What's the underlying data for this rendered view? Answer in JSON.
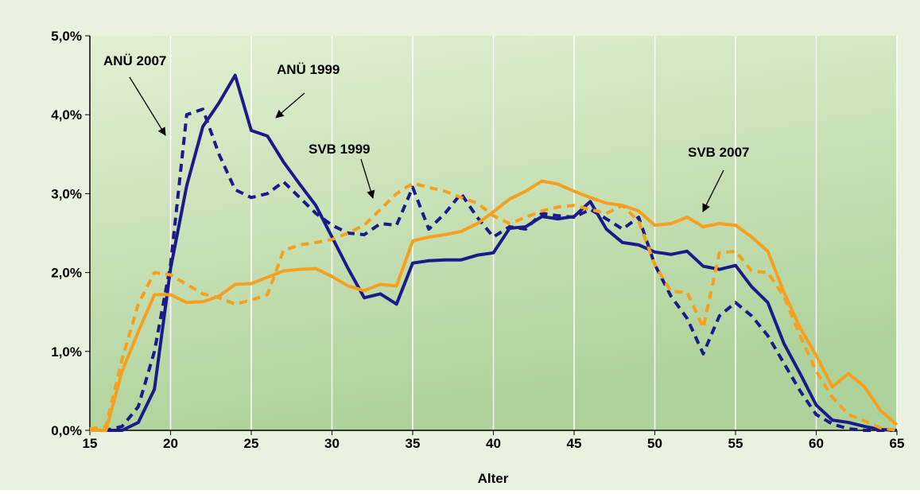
{
  "chart_data": {
    "type": "line",
    "xlabel": "Alter",
    "x": [
      15,
      16,
      17,
      18,
      19,
      20,
      21,
      22,
      23,
      24,
      25,
      26,
      27,
      28,
      29,
      30,
      31,
      32,
      33,
      34,
      35,
      36,
      37,
      38,
      39,
      40,
      41,
      42,
      43,
      44,
      45,
      46,
      47,
      48,
      49,
      50,
      51,
      52,
      53,
      54,
      55,
      56,
      57,
      58,
      59,
      60,
      61,
      62,
      63,
      64,
      65
    ],
    "series": [
      {
        "name": "ANÜ 2007",
        "color": "#1a1a8a",
        "dashed": false,
        "values": [
          0,
          0,
          0,
          0.1,
          0.52,
          2.05,
          3.1,
          3.85,
          4.15,
          4.5,
          3.8,
          3.73,
          3.4,
          3.12,
          2.85,
          2.45,
          2.05,
          1.68,
          1.73,
          1.6,
          2.12,
          2.15,
          2.16,
          2.16,
          2.22,
          2.25,
          2.56,
          2.58,
          2.71,
          2.68,
          2.71,
          2.9,
          2.55,
          2.38,
          2.35,
          2.26,
          2.23,
          2.27,
          2.08,
          2.04,
          2.09,
          1.82,
          1.62,
          1.1,
          0.72,
          0.32,
          0.13,
          0.1,
          0.05,
          0.01,
          0
        ]
      },
      {
        "name": "ANÜ 1999",
        "color": "#1a1a8a",
        "dashed": true,
        "values": [
          0,
          0,
          0.05,
          0.3,
          1.0,
          2.1,
          4.0,
          4.07,
          3.5,
          3.05,
          2.95,
          3.0,
          3.15,
          2.95,
          2.75,
          2.6,
          2.5,
          2.48,
          2.62,
          2.6,
          3.08,
          2.55,
          2.75,
          3.0,
          2.7,
          2.45,
          2.58,
          2.55,
          2.75,
          2.72,
          2.7,
          2.8,
          2.68,
          2.55,
          2.7,
          2.1,
          1.7,
          1.42,
          0.97,
          1.45,
          1.62,
          1.45,
          1.2,
          0.85,
          0.5,
          0.2,
          0.08,
          0.02,
          0,
          0,
          0
        ]
      },
      {
        "name": "SVB 2007",
        "color": "#f5a01e",
        "dashed": false,
        "values": [
          0,
          0,
          0.75,
          1.25,
          1.72,
          1.72,
          1.62,
          1.63,
          1.7,
          1.85,
          1.86,
          1.94,
          2.02,
          2.04,
          2.05,
          1.95,
          1.83,
          1.77,
          1.85,
          1.83,
          2.4,
          2.45,
          2.48,
          2.52,
          2.62,
          2.77,
          2.93,
          3.03,
          3.16,
          3.12,
          3.03,
          2.95,
          2.88,
          2.85,
          2.78,
          2.6,
          2.62,
          2.7,
          2.58,
          2.62,
          2.6,
          2.45,
          2.27,
          1.75,
          1.3,
          0.95,
          0.55,
          0.72,
          0.55,
          0.25,
          0.07
        ]
      },
      {
        "name": "SVB 1999",
        "color": "#f5a01e",
        "dashed": true,
        "values": [
          0.02,
          0.05,
          0.9,
          1.6,
          2.0,
          1.97,
          1.85,
          1.73,
          1.68,
          1.6,
          1.65,
          1.72,
          2.28,
          2.35,
          2.38,
          2.42,
          2.5,
          2.6,
          2.8,
          3.0,
          3.13,
          3.08,
          3.03,
          2.95,
          2.88,
          2.72,
          2.62,
          2.7,
          2.78,
          2.83,
          2.85,
          2.8,
          2.75,
          2.85,
          2.65,
          2.1,
          1.76,
          1.75,
          1.3,
          2.25,
          2.27,
          2.02,
          2.0,
          1.7,
          1.2,
          0.75,
          0.42,
          0.2,
          0.12,
          0.03,
          0
        ]
      }
    ],
    "xlim": [
      15,
      65
    ],
    "xticks": [
      15,
      20,
      25,
      30,
      35,
      40,
      45,
      50,
      55,
      60,
      65
    ],
    "ylim": [
      0,
      5
    ],
    "yticks": [
      {
        "value": 0,
        "label": "0,0%"
      },
      {
        "value": 1,
        "label": "1,0%"
      },
      {
        "value": 2,
        "label": "2,0%"
      },
      {
        "value": 3,
        "label": "3,0%"
      },
      {
        "value": 4,
        "label": "4,0%"
      },
      {
        "value": 5,
        "label": "5,0%"
      }
    ],
    "grid": true
  }
}
